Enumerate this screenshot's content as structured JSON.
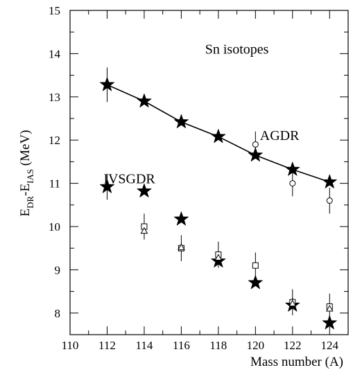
{
  "chart_data": {
    "type": "scatter",
    "title": "",
    "xlabel": "Mass number (A)",
    "ylabel": {
      "main": "E",
      "sub1": "DR",
      "mid": "-E",
      "sub2": "IAS",
      "unit": " (MeV)"
    },
    "xlim": [
      110,
      125
    ],
    "ylim": [
      7.5,
      15
    ],
    "xticks": [
      110,
      112,
      114,
      116,
      118,
      120,
      122,
      124
    ],
    "yticks": [
      8,
      9,
      10,
      11,
      12,
      13,
      14,
      15
    ],
    "grid": false,
    "annotations": [
      {
        "text": "Sn isotopes",
        "x": 119,
        "y": 14.0
      },
      {
        "text": "AGDR",
        "x": 121.3,
        "y": 12.0
      },
      {
        "text": "IVSGDR",
        "x": 113.2,
        "y": 11.0
      }
    ],
    "series": [
      {
        "marker": "star-filled",
        "connected": true,
        "points": [
          {
            "x": 112,
            "y": 13.28,
            "err": 0.4
          },
          {
            "x": 114,
            "y": 12.9,
            "err": 0.08
          },
          {
            "x": 116,
            "y": 12.42,
            "err": 0.08
          },
          {
            "x": 118,
            "y": 12.08,
            "err": 0.08
          },
          {
            "x": 120,
            "y": 11.65,
            "err": 0.08
          },
          {
            "x": 122,
            "y": 11.32,
            "err": 0.08
          },
          {
            "x": 124,
            "y": 11.03,
            "err": 0.08
          }
        ]
      },
      {
        "marker": "circle-open",
        "connected": false,
        "points": [
          {
            "x": 120,
            "y": 11.9,
            "err": 0.3
          },
          {
            "x": 122,
            "y": 11.0,
            "err": 0.3
          },
          {
            "x": 124,
            "y": 10.6,
            "err": 0.3
          }
        ]
      },
      {
        "marker": "star-filled",
        "connected": false,
        "points": [
          {
            "x": 112,
            "y": 10.92,
            "err": 0.3
          },
          {
            "x": 114,
            "y": 10.82,
            "err": 0.05
          },
          {
            "x": 116,
            "y": 10.17,
            "err": 0.05
          },
          {
            "x": 118,
            "y": 9.2,
            "err": 0.05
          },
          {
            "x": 120,
            "y": 8.7,
            "err": 0.05
          },
          {
            "x": 122,
            "y": 8.18,
            "err": 0.05
          },
          {
            "x": 124,
            "y": 7.77,
            "err": 0.05
          }
        ]
      },
      {
        "marker": "square-open",
        "connected": false,
        "points": [
          {
            "x": 114,
            "y": 10.0,
            "err": 0.3
          },
          {
            "x": 116,
            "y": 9.5,
            "err": 0.3
          },
          {
            "x": 118,
            "y": 9.35,
            "err": 0.3
          },
          {
            "x": 120,
            "y": 9.1,
            "err": 0.3
          },
          {
            "x": 122,
            "y": 8.25,
            "err": 0.3
          },
          {
            "x": 124,
            "y": 8.15,
            "err": 0.3
          }
        ]
      },
      {
        "marker": "triangle-open",
        "connected": false,
        "points": [
          {
            "x": 114,
            "y": 9.9,
            "err": 0.0
          },
          {
            "x": 116,
            "y": 9.52,
            "err": 0.0
          },
          {
            "x": 118,
            "y": 9.28,
            "err": 0.0
          },
          {
            "x": 122,
            "y": 8.22,
            "err": 0.0
          },
          {
            "x": 124,
            "y": 8.1,
            "err": 0.0
          }
        ]
      }
    ]
  }
}
